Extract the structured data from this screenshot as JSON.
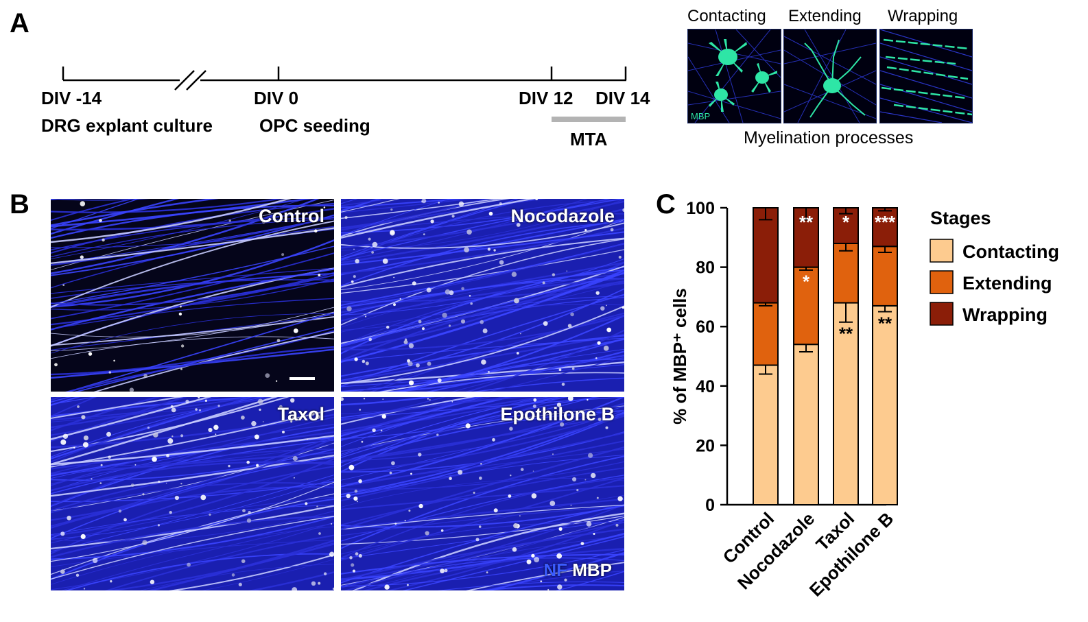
{
  "panel_a": {
    "label": "A",
    "timeline": {
      "points": [
        {
          "day": "DIV -14",
          "event": "DRG explant culture"
        },
        {
          "day": "DIV 0",
          "event": "OPC seeding"
        },
        {
          "day": "DIV 12",
          "event": ""
        },
        {
          "day": "DIV 14",
          "event": ""
        }
      ],
      "treatment_label": "MTA"
    },
    "stages_header": [
      "Contacting",
      "Extending",
      "Wrapping"
    ],
    "stain_label": "MBP",
    "caption": "Myelination processes"
  },
  "panel_b": {
    "label": "B",
    "images": [
      {
        "title": "Control"
      },
      {
        "title": "Nocodazole"
      },
      {
        "title": "Taxol"
      },
      {
        "title": "Epothilone B"
      }
    ],
    "legend_nf": "NF",
    "legend_mbp": "MBP"
  },
  "panel_c": {
    "label": "C",
    "chart_data": {
      "type": "bar",
      "stacked": true,
      "categories": [
        "Control",
        "Nocodazole",
        "Taxol",
        "Epothilone B"
      ],
      "series": [
        {
          "name": "Contacting",
          "color": "#fdcb8f",
          "values": [
            47,
            54,
            68,
            67
          ],
          "errors": [
            3,
            2.5,
            6.5,
            2
          ],
          "significance": [
            "",
            "",
            "**",
            "**"
          ]
        },
        {
          "name": "Extending",
          "color": "#e0620e",
          "values": [
            21,
            26,
            20,
            20
          ],
          "errors": [
            1,
            1,
            2.5,
            2
          ],
          "significance": [
            "",
            "*",
            "",
            ""
          ]
        },
        {
          "name": "Wrapping",
          "color": "#8b1e08",
          "values": [
            32,
            20,
            12,
            13
          ],
          "errors": [
            4,
            4,
            2,
            1
          ],
          "significance": [
            "",
            "**",
            "*",
            "***"
          ]
        }
      ],
      "ylabel": "% of MBP⁺ cells",
      "ylim": [
        0,
        100
      ],
      "yticks": [
        0,
        20,
        40,
        60,
        80,
        100
      ],
      "legend_title": "Stages",
      "legend_position": "right"
    }
  }
}
